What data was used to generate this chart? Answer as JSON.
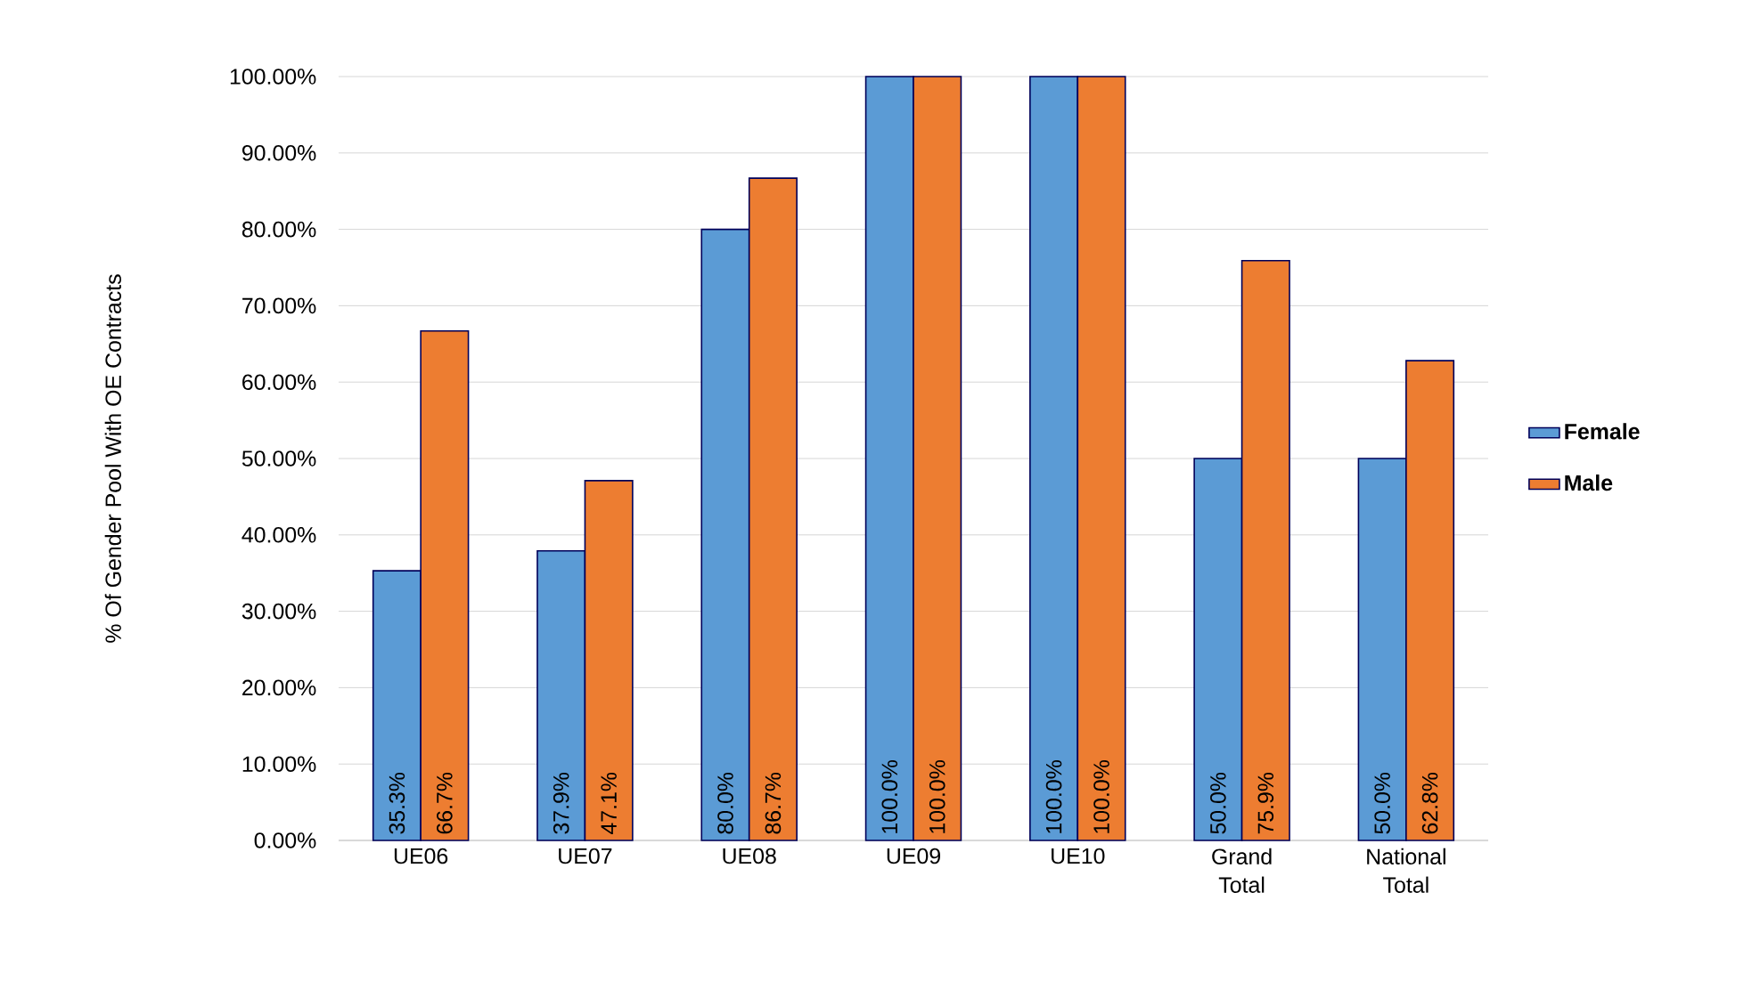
{
  "chart_data": {
    "type": "bar",
    "ylabel": "% Of Gender Pool With OE Contracts",
    "categories": [
      "UE06",
      "UE07",
      "UE08",
      "UE09",
      "UE10",
      "Grand Total",
      "National Total"
    ],
    "series": [
      {
        "name": "Female",
        "color": "#5b9bd5",
        "values": [
          35.3,
          37.9,
          80.0,
          100.0,
          100.0,
          50.0,
          50.0
        ],
        "value_labels": [
          "35.3%",
          "37.9%",
          "80.0%",
          "100.0%",
          "100.0%",
          "50.0%",
          "50.0%"
        ]
      },
      {
        "name": "Male",
        "color": "#ed7d31",
        "values": [
          66.7,
          47.1,
          86.7,
          100.0,
          100.0,
          75.9,
          62.8
        ],
        "value_labels": [
          "66.7%",
          "47.1%",
          "86.7%",
          "100.0%",
          "100.0%",
          "75.9%",
          "62.8%"
        ]
      }
    ],
    "ylim": [
      0,
      100
    ],
    "yticks": [
      {
        "value": 0,
        "label": "0.00%"
      },
      {
        "value": 10,
        "label": "10.00%"
      },
      {
        "value": 20,
        "label": "20.00%"
      },
      {
        "value": 30,
        "label": "30.00%"
      },
      {
        "value": 40,
        "label": "40.00%"
      },
      {
        "value": 50,
        "label": "50.00%"
      },
      {
        "value": 60,
        "label": "60.00%"
      },
      {
        "value": 70,
        "label": "70.00%"
      },
      {
        "value": 80,
        "label": "80.00%"
      },
      {
        "value": 90,
        "label": "90.00%"
      },
      {
        "value": 100,
        "label": "100.00%"
      }
    ],
    "grid": "y",
    "legend": "right"
  }
}
